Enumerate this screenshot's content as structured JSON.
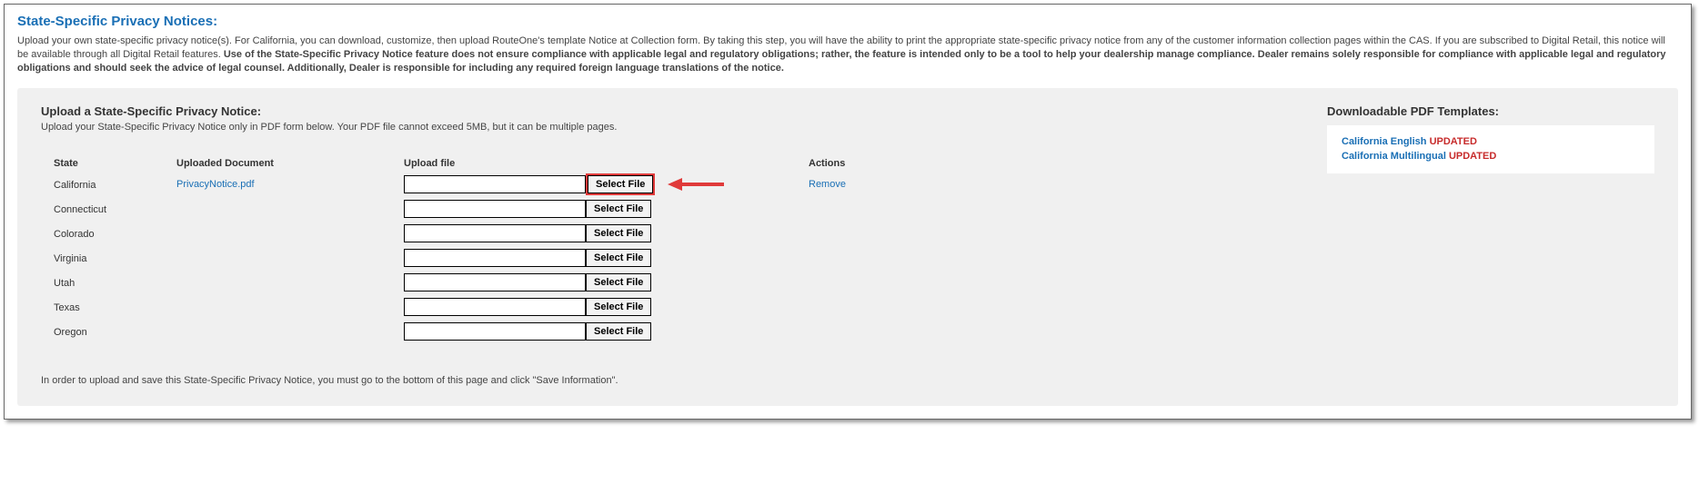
{
  "title": "State-Specific Privacy Notices:",
  "intro_plain": "Upload your own state-specific privacy notice(s). For California, you can download, customize, then upload RouteOne's template Notice at Collection form. By taking this step, you will have the ability to print the appropriate state-specific privacy notice from any of the customer information collection pages within the CAS. If you are subscribed to Digital Retail, this notice will be available through all Digital Retail features. ",
  "intro_bold": "Use of the State-Specific Privacy Notice feature does not ensure compliance with applicable legal and regulatory obligations; rather, the feature is intended only to be a tool to help your dealership manage compliance. Dealer remains solely responsible for compliance with applicable legal and regulatory obligations and should seek the advice of legal counsel. Additionally, Dealer is responsible for including any required foreign language translations of the notice.",
  "upload": {
    "title": "Upload a State-Specific Privacy Notice:",
    "subtitle": "Upload your State-Specific Privacy Notice only in PDF form below. Your PDF file cannot exceed 5MB, but it can be multiple pages."
  },
  "templates": {
    "title": "Downloadable PDF Templates:",
    "items": [
      {
        "label": "California English",
        "tag": "UPDATED"
      },
      {
        "label": "California Multilingual",
        "tag": "UPDATED"
      }
    ]
  },
  "columns": {
    "state": "State",
    "uploaded": "Uploaded Document",
    "upload_file": "Upload file",
    "actions": "Actions"
  },
  "select_file_label": "Select File",
  "remove_label": "Remove",
  "rows": [
    {
      "state": "California",
      "doc": "PrivacyNotice.pdf",
      "has_action": true,
      "highlight": true
    },
    {
      "state": "Connecticut",
      "doc": "",
      "has_action": false,
      "highlight": false
    },
    {
      "state": "Colorado",
      "doc": "",
      "has_action": false,
      "highlight": false
    },
    {
      "state": "Virginia",
      "doc": "",
      "has_action": false,
      "highlight": false
    },
    {
      "state": "Utah",
      "doc": "",
      "has_action": false,
      "highlight": false
    },
    {
      "state": "Texas",
      "doc": "",
      "has_action": false,
      "highlight": false
    },
    {
      "state": "Oregon",
      "doc": "",
      "has_action": false,
      "highlight": false
    }
  ],
  "footer": "In order to upload and save this State-Specific Privacy Notice, you must go to the bottom of this page and click \"Save Information\".",
  "arrow_color": "#e03a3a"
}
